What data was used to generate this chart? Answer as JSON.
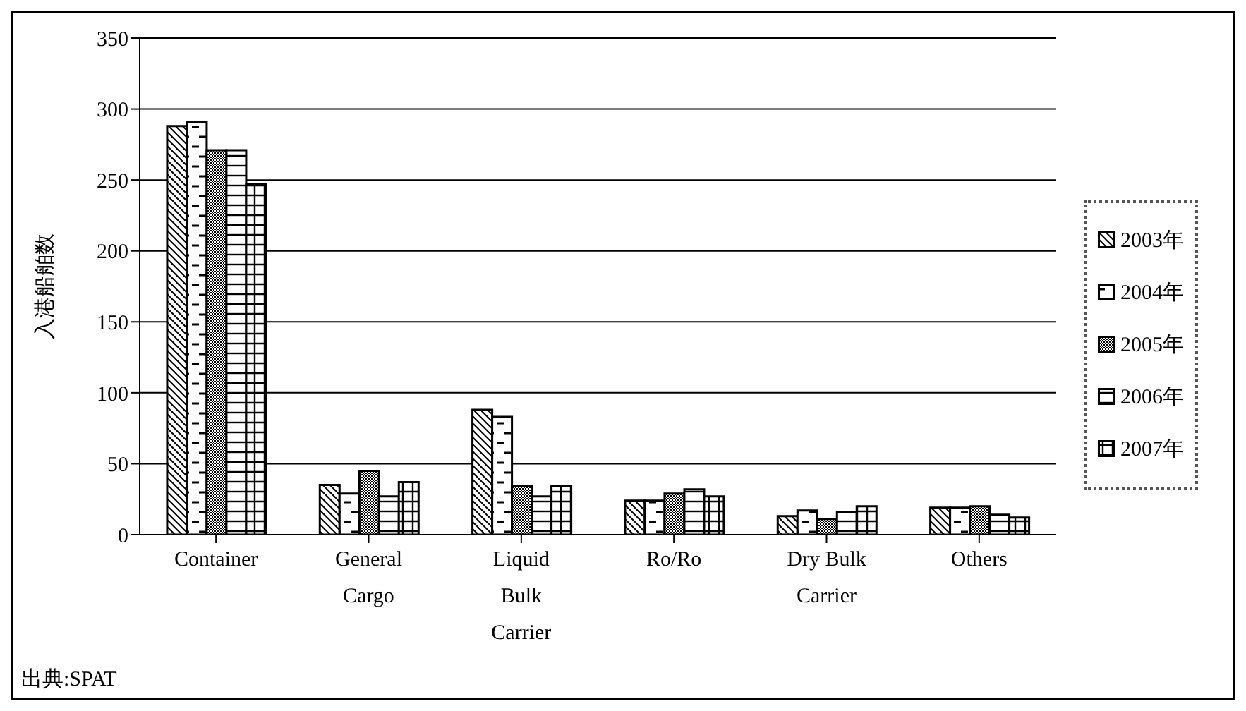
{
  "chart_data": {
    "type": "bar",
    "ylabel": "入港船舶数",
    "categories": [
      "Container",
      "General Cargo",
      "Liquid Bulk Carrier",
      "Ro/Ro",
      "Dry Bulk Carrier",
      "Others"
    ],
    "series": [
      {
        "name": "2003年",
        "color": "#000000",
        "values": [
          288,
          35,
          88,
          24,
          13,
          19
        ]
      },
      {
        "name": "2004年",
        "color": "#000000",
        "values": [
          291,
          29,
          83,
          24,
          17,
          19
        ]
      },
      {
        "name": "2005年",
        "color": "#000000",
        "values": [
          271,
          45,
          34,
          29,
          11,
          20
        ]
      },
      {
        "name": "2006年",
        "color": "#000000",
        "values": [
          271,
          27,
          27,
          32,
          16,
          14
        ]
      },
      {
        "name": "2007年",
        "color": "#000000",
        "values": [
          247,
          37,
          34,
          27,
          20,
          12
        ]
      }
    ],
    "ylim": [
      0,
      350
    ],
    "yticks": [
      0,
      50,
      100,
      150,
      200,
      250,
      300,
      350
    ],
    "grid": "y",
    "legend": "right",
    "annotations": [
      "出典:SPAT"
    ]
  }
}
